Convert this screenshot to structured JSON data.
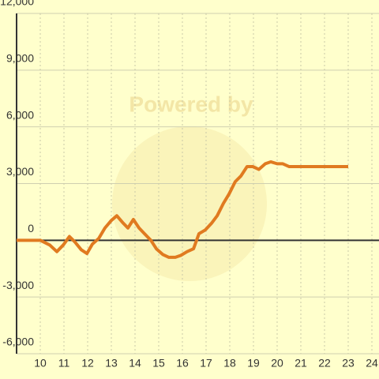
{
  "chart_data": {
    "type": "line",
    "watermark": "Powered by",
    "x": [
      9,
      10,
      10.4,
      10.7,
      10.97,
      11.23,
      11.47,
      11.73,
      11.97,
      12.2,
      12.47,
      12.73,
      13,
      13.23,
      13.47,
      13.7,
      13.93,
      14.17,
      14.4,
      14.67,
      14.9,
      15.17,
      15.43,
      15.7,
      15.93,
      16.2,
      16.47,
      16.7,
      16.97,
      17.23,
      17.47,
      17.73,
      17.97,
      18.23,
      18.47,
      18.73,
      18.97,
      19.23,
      19.5,
      19.73,
      20,
      20.23,
      20.5,
      23
    ],
    "series": [
      {
        "color": "#e07a20",
        "values": [
          0,
          0,
          -250,
          -600,
          -250,
          200,
          -100,
          -500,
          -700,
          -200,
          100,
          650,
          1050,
          1300,
          950,
          650,
          1100,
          650,
          350,
          0,
          -450,
          -750,
          -900,
          -900,
          -800,
          -600,
          -450,
          350,
          550,
          900,
          1300,
          1950,
          2450,
          3100,
          3400,
          3900,
          3900,
          3750,
          4050,
          4150,
          4050,
          4050,
          3900,
          3900
        ]
      }
    ],
    "xlim": [
      9,
      24.3
    ],
    "xticks": [
      10,
      11,
      12,
      13,
      14,
      15,
      16,
      17,
      18,
      19,
      20,
      21,
      22,
      23,
      24
    ],
    "ylim": [
      -6000,
      12000
    ],
    "yticks": [
      {
        "value": -6000,
        "label": "-6,000"
      },
      {
        "value": -3000,
        "label": "-3,000"
      },
      0,
      {
        "value": 3000,
        "label": "3,000"
      },
      {
        "value": 6000,
        "label": "6,000"
      },
      {
        "value": 9000,
        "label": "9,000"
      },
      {
        "value": 12000,
        "label": "12,000"
      }
    ],
    "grid": true
  }
}
